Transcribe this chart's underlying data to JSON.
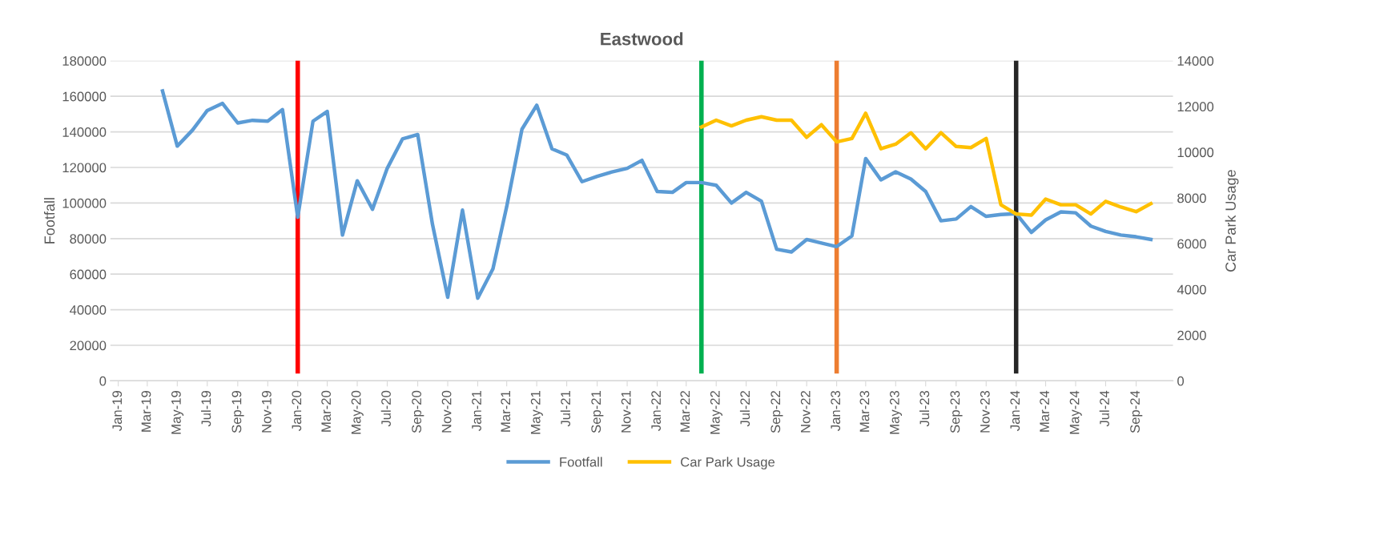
{
  "chart_data": {
    "type": "line",
    "title": "Eastwood",
    "ylabel": "Footfall",
    "y2label": "Car Park Usage",
    "xlim": [
      "2018-12-16",
      "2024-11-15"
    ],
    "xticks": [
      {
        "value": "2019-01",
        "label": "Jan-19"
      },
      {
        "value": "2019-03",
        "label": "Mar-19"
      },
      {
        "value": "2019-05",
        "label": "May-19"
      },
      {
        "value": "2019-07",
        "label": "Jul-19"
      },
      {
        "value": "2019-09",
        "label": "Sep-19"
      },
      {
        "value": "2019-11",
        "label": "Nov-19"
      },
      {
        "value": "2020-01",
        "label": "Jan-20"
      },
      {
        "value": "2020-03",
        "label": "Mar-20"
      },
      {
        "value": "2020-05",
        "label": "May-20"
      },
      {
        "value": "2020-07",
        "label": "Jul-20"
      },
      {
        "value": "2020-09",
        "label": "Sep-20"
      },
      {
        "value": "2020-11",
        "label": "Nov-20"
      },
      {
        "value": "2021-01",
        "label": "Jan-21"
      },
      {
        "value": "2021-03",
        "label": "Mar-21"
      },
      {
        "value": "2021-05",
        "label": "May-21"
      },
      {
        "value": "2021-07",
        "label": "Jul-21"
      },
      {
        "value": "2021-09",
        "label": "Sep-21"
      },
      {
        "value": "2021-11",
        "label": "Nov-21"
      },
      {
        "value": "2022-01",
        "label": "Jan-22"
      },
      {
        "value": "2022-03",
        "label": "Mar-22"
      },
      {
        "value": "2022-05",
        "label": "May-22"
      },
      {
        "value": "2022-07",
        "label": "Jul-22"
      },
      {
        "value": "2022-09",
        "label": "Sep-22"
      },
      {
        "value": "2022-11",
        "label": "Nov-22"
      },
      {
        "value": "2023-01",
        "label": "Jan-23"
      },
      {
        "value": "2023-03",
        "label": "Mar-23"
      },
      {
        "value": "2023-05",
        "label": "May-23"
      },
      {
        "value": "2023-07",
        "label": "Jul-23"
      },
      {
        "value": "2023-09",
        "label": "Sep-23"
      },
      {
        "value": "2023-11",
        "label": "Nov-23"
      },
      {
        "value": "2024-01",
        "label": "Jan-24"
      },
      {
        "value": "2024-03",
        "label": "Mar-24"
      },
      {
        "value": "2024-05",
        "label": "May-24"
      },
      {
        "value": "2024-07",
        "label": "Jul-24"
      },
      {
        "value": "2024-09",
        "label": "Sep-24"
      }
    ],
    "ylim": [
      0,
      180000
    ],
    "yticks": [
      0,
      20000,
      40000,
      60000,
      80000,
      100000,
      120000,
      140000,
      160000,
      180000
    ],
    "y2lim": [
      0,
      14000
    ],
    "y2ticks": [
      0,
      2000,
      4000,
      6000,
      8000,
      10000,
      12000,
      14000
    ],
    "grid": "y",
    "legend": "bottom",
    "line_style": "solid",
    "marker": "none",
    "series": [
      {
        "name": "Footfall",
        "color": "#5b9bd5",
        "x": [
          "2019-04",
          "2019-05",
          "2019-06",
          "2019-07",
          "2019-08",
          "2019-09",
          "2019-10",
          "2019-11",
          "2019-12",
          "2020-01",
          "2020-02",
          "2020-03",
          "2020-04",
          "2020-05",
          "2020-06",
          "2020-07",
          "2020-08",
          "2020-09",
          "2020-10",
          "2020-11",
          "2020-12",
          "2021-01",
          "2021-02",
          "2021-03",
          "2021-04",
          "2021-05",
          "2021-06",
          "2021-07",
          "2021-08",
          "2021-09",
          "2021-10",
          "2021-11",
          "2021-12",
          "2022-01",
          "2022-02",
          "2022-03",
          "2022-04",
          "2022-05",
          "2022-06",
          "2022-07",
          "2022-08",
          "2022-09",
          "2022-10",
          "2022-11",
          "2022-12",
          "2023-01",
          "2023-02",
          "2023-03",
          "2023-04",
          "2023-05",
          "2023-06",
          "2023-07",
          "2023-08",
          "2023-09",
          "2023-10",
          "2023-11",
          "2023-12",
          "2024-01",
          "2024-02",
          "2024-03",
          "2024-04",
          "2024-05",
          "2024-06",
          "2024-07",
          "2024-08",
          "2024-09",
          "2024-10"
        ],
        "values": [
          163000,
          132000,
          141000,
          152000,
          156000,
          145000,
          146500,
          146000,
          152500,
          92000,
          146000,
          151500,
          82000,
          112500,
          96500,
          119500,
          136000,
          138500,
          88000,
          47000,
          96000,
          46500,
          63000,
          98000,
          141500,
          155000,
          130500,
          127000,
          112000,
          115000,
          117500,
          119500,
          124000,
          106500,
          106000,
          111500,
          111500,
          110000,
          100000,
          106000,
          101000,
          74000,
          72500,
          79500,
          77500,
          75500,
          81500,
          125000,
          113000,
          117500,
          113500,
          106500,
          90000,
          91000,
          98000,
          92500,
          93500,
          94000,
          83500,
          90500,
          95000,
          94500,
          87000,
          84000,
          82000,
          81000,
          79500
        ]
      },
      {
        "name": "Car Park Usage",
        "color": "#ffc000",
        "axis": "y2",
        "x": [
          "2022-04",
          "2022-05",
          "2022-06",
          "2022-07",
          "2022-08",
          "2022-09",
          "2022-10",
          "2022-11",
          "2022-12",
          "2023-01",
          "2023-02",
          "2023-03",
          "2023-04",
          "2023-05",
          "2023-06",
          "2023-07",
          "2023-08",
          "2023-09",
          "2023-10",
          "2023-11",
          "2023-12",
          "2024-01",
          "2024-02",
          "2024-03",
          "2024-04",
          "2024-05",
          "2024-06",
          "2024-07",
          "2024-08",
          "2024-09",
          "2024-10"
        ],
        "values": [
          11100,
          11400,
          11150,
          11400,
          11550,
          11400,
          11400,
          10650,
          11200,
          10450,
          10600,
          11700,
          10150,
          10350,
          10850,
          10150,
          10850,
          10250,
          10200,
          10600,
          7700,
          7300,
          7250,
          7950,
          7700,
          7700,
          7300,
          7850,
          7600,
          7400,
          7750
        ]
      }
    ],
    "ref_lines": [
      {
        "axis": "x",
        "value": "2020-01",
        "color": "#ff0000"
      },
      {
        "axis": "x",
        "value": "2022-04",
        "color": "#00b050"
      },
      {
        "axis": "x",
        "value": "2023-01",
        "color": "#ed7d31"
      },
      {
        "axis": "x",
        "value": "2024-01",
        "color": "#262626"
      }
    ]
  }
}
